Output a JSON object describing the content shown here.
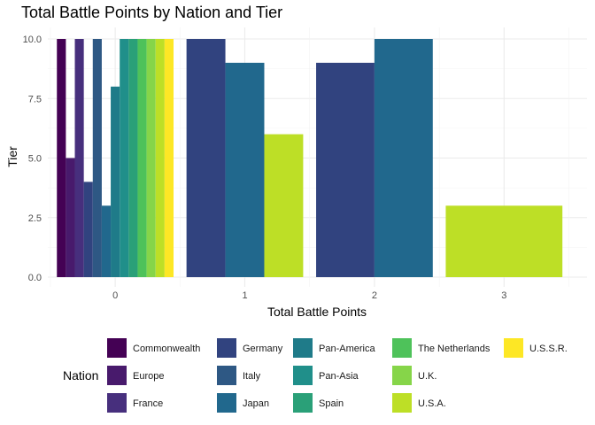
{
  "chart_data": {
    "type": "bar",
    "title": "Total Battle Points by Nation and Tier",
    "xlabel": "Total Battle Points",
    "ylabel": "Tier",
    "x_ticks": [
      "0",
      "1",
      "2",
      "3"
    ],
    "y_ticks": [
      "0.0",
      "2.5",
      "5.0",
      "7.5",
      "10.0"
    ],
    "xlim": [
      -0.52,
      3.64
    ],
    "ylim": [
      0,
      10
    ],
    "grid": true,
    "legend_title": "Nation",
    "legend_position": "bottom",
    "nations": [
      "Commonwealth",
      "Europe",
      "France",
      "Germany",
      "Italy",
      "Japan",
      "Pan-America",
      "Pan-Asia",
      "Spain",
      "The Netherlands",
      "U.K.",
      "U.S.A.",
      "U.S.S.R."
    ],
    "colors": {
      "Commonwealth": "#440154",
      "Europe": "#481a6c",
      "France": "#472f7d",
      "Germany": "#31437f",
      "Italy": "#2e5884",
      "Japan": "#21688d",
      "Pan-America": "#1f7b89",
      "Pan-Asia": "#208f8a",
      "Spain": "#2aa078",
      "The Netherlands": "#4ec25a",
      "U.K.": "#86d549",
      "U.S.A.": "#bddf26",
      "U.S.S.R.": "#fde725"
    },
    "groups": [
      {
        "x": 0,
        "bars": [
          {
            "nation": "Commonwealth",
            "tier": 10
          },
          {
            "nation": "Europe",
            "tier": 5
          },
          {
            "nation": "France",
            "tier": 10
          },
          {
            "nation": "Germany",
            "tier": 4
          },
          {
            "nation": "Italy",
            "tier": 10
          },
          {
            "nation": "Japan",
            "tier": 3
          },
          {
            "nation": "Pan-America",
            "tier": 8
          },
          {
            "nation": "Pan-Asia",
            "tier": 10
          },
          {
            "nation": "Spain",
            "tier": 10
          },
          {
            "nation": "The Netherlands",
            "tier": 10
          },
          {
            "nation": "U.K.",
            "tier": 10
          },
          {
            "nation": "U.S.A.",
            "tier": 10
          },
          {
            "nation": "U.S.S.R.",
            "tier": 10
          }
        ]
      },
      {
        "x": 1,
        "bars": [
          {
            "nation": "Germany",
            "tier": 10
          },
          {
            "nation": "Japan",
            "tier": 9
          },
          {
            "nation": "U.S.A.",
            "tier": 6
          }
        ]
      },
      {
        "x": 2,
        "bars": [
          {
            "nation": "Germany",
            "tier": 9
          },
          {
            "nation": "Japan",
            "tier": 10
          }
        ]
      },
      {
        "x": 3,
        "bars": [
          {
            "nation": "U.S.A.",
            "tier": 3
          }
        ]
      }
    ]
  }
}
